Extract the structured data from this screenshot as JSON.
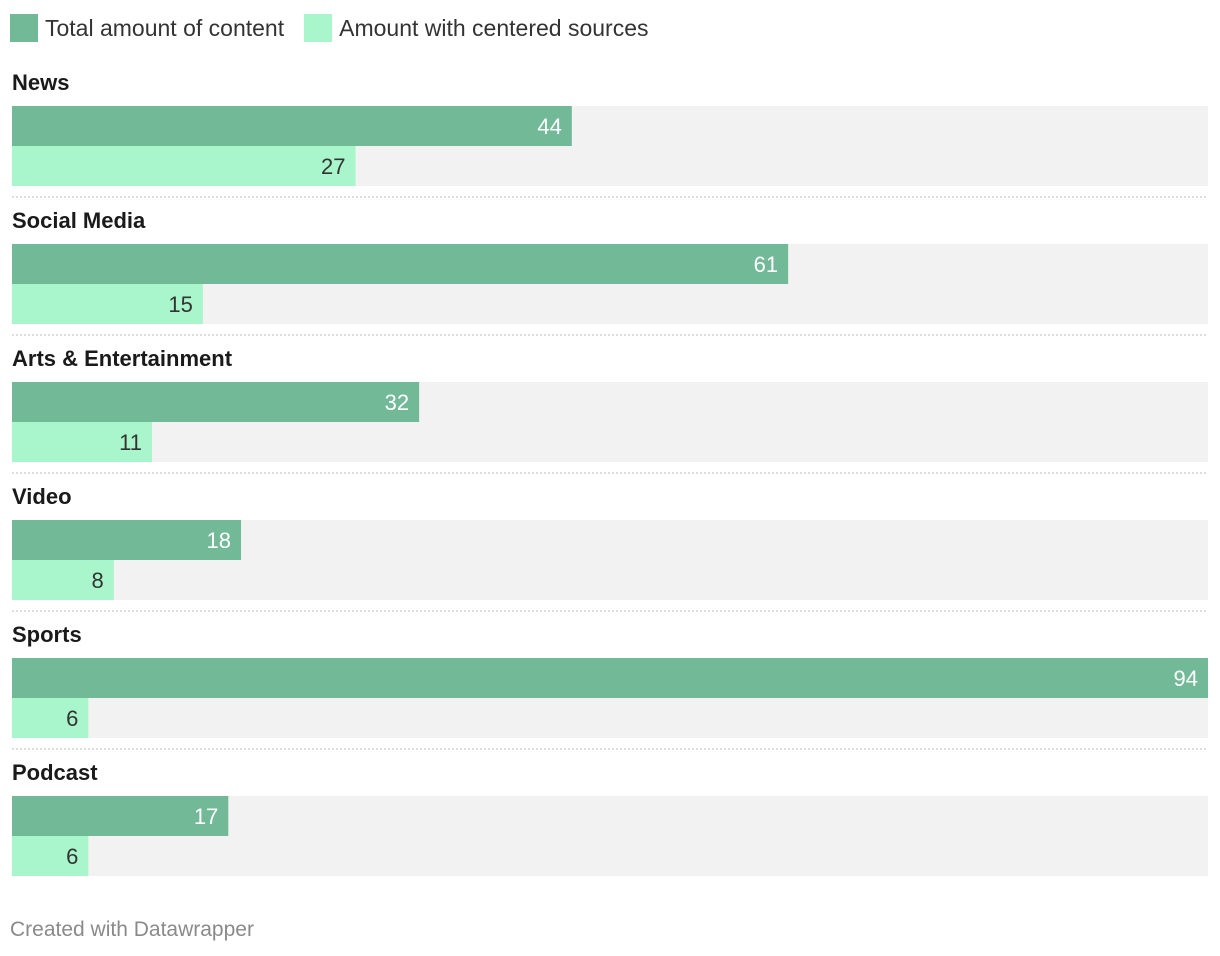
{
  "legend": [
    {
      "label": "Total amount of content",
      "color": "#72b998"
    },
    {
      "label": "Amount with centered sources",
      "color": "#a9f5cc"
    }
  ],
  "footer": "Created with Datawrapper",
  "chart_data": {
    "type": "bar",
    "orientation": "horizontal",
    "categories": [
      "News",
      "Social Media",
      "Arts & Entertainment",
      "Video",
      "Sports",
      "Podcast"
    ],
    "series": [
      {
        "name": "Total amount of content",
        "values": [
          44,
          61,
          32,
          18,
          94,
          17
        ],
        "color": "#72b998",
        "label_color": "#ffffff"
      },
      {
        "name": "Amount with centered sources",
        "values": [
          27,
          15,
          11,
          8,
          6,
          6
        ],
        "color": "#a9f5cc",
        "label_color": "#333333"
      }
    ],
    "xlim": [
      0,
      94
    ],
    "background_track_color": "#f2f2f2",
    "grid": false
  }
}
